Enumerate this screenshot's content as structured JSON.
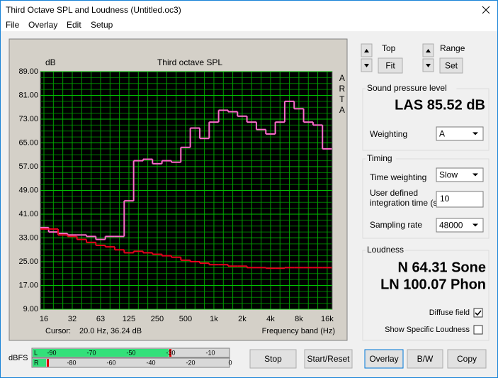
{
  "window": {
    "title": "Third Octave SPL and Loudness (Untitled.oc3)",
    "menu": [
      "File",
      "Overlay",
      "Edit",
      "Setup"
    ]
  },
  "chart_data": {
    "type": "line",
    "title": "Third octave SPL",
    "y_label": "dB",
    "side_label": "ARTA",
    "x_label": "Frequency band (Hz)",
    "cursor_label": "Cursor:",
    "cursor_value": "20.0 Hz, 36.24 dB",
    "categories": [
      "16",
      null,
      null,
      "32",
      null,
      null,
      "63",
      null,
      null,
      "125",
      null,
      null,
      "250",
      null,
      null,
      "500",
      null,
      null,
      "1k",
      null,
      null,
      "2k",
      null,
      null,
      "4k",
      null,
      null,
      "8k",
      null,
      null,
      "16k"
    ],
    "series": [
      {
        "color": "#ff6ccc",
        "values": [
          36.5,
          35,
          34.5,
          34,
          34,
          33.5,
          32.5,
          33.5,
          33.5,
          45.5,
          59,
          59.5,
          58,
          59,
          58.5,
          63.5,
          70,
          66.5,
          72,
          76,
          75.5,
          74,
          72,
          69.5,
          68,
          72,
          79,
          76.5,
          72,
          71,
          63
        ]
      },
      {
        "color": "#e8001c",
        "values": [
          36,
          36,
          34,
          33.5,
          32.5,
          31.5,
          30.5,
          30,
          29,
          28,
          28.5,
          28,
          27.5,
          27,
          26.5,
          25.5,
          25,
          24.5,
          24,
          24,
          23.5,
          23.5,
          23,
          23,
          22.8,
          22.8,
          23,
          23,
          23,
          23,
          23
        ]
      }
    ],
    "ylim": [
      9,
      89
    ],
    "yticks": [
      {
        "value": 9,
        "label": "9.00"
      },
      {
        "value": 17,
        "label": "17.00"
      },
      {
        "value": 25,
        "label": "25.00"
      },
      {
        "value": 33,
        "label": "33.00"
      },
      {
        "value": 41,
        "label": "41.00"
      },
      {
        "value": 49,
        "label": "49.00"
      },
      {
        "value": 57,
        "label": "57.00"
      },
      {
        "value": 65,
        "label": "65.00"
      },
      {
        "value": 73,
        "label": "73.00"
      },
      {
        "value": 81,
        "label": "81.00"
      },
      {
        "value": 89,
        "label": "89.00"
      }
    ],
    "grid": true
  },
  "controls": {
    "top_label": "Top",
    "fit": "Fit",
    "range_label": "Range",
    "set": "Set"
  },
  "spl": {
    "title": "Sound pressure level",
    "reading": "LAS 85.52 dB",
    "weighting_label": "Weighting",
    "weighting": "A"
  },
  "timing": {
    "title": "Timing",
    "time_weighting_label": "Time weighting",
    "time_weighting": "Slow",
    "integration_label": [
      "User defined",
      "integration time (s)"
    ],
    "integration": "10",
    "sampling_label": "Sampling rate",
    "sampling": "48000"
  },
  "loudness": {
    "title": "Loudness",
    "sone": "N 64.31 Sone",
    "phon": "LN 100.07 Phon",
    "diffuse_label": "Diffuse field",
    "diffuse_checked": true,
    "specific_label": "Show Specific Loudness",
    "specific_checked": false
  },
  "meter": {
    "label": "dBFS",
    "left_channel": "L",
    "right_channel": "R",
    "left_scale": [
      "-90",
      "-70",
      "-50",
      "-30",
      "-10"
    ],
    "right_scale": [
      "-80",
      "-60",
      "-40",
      "-20",
      "0"
    ]
  },
  "buttons": [
    "Stop",
    "Start/Reset",
    "Overlay",
    "B/W",
    "Copy"
  ]
}
